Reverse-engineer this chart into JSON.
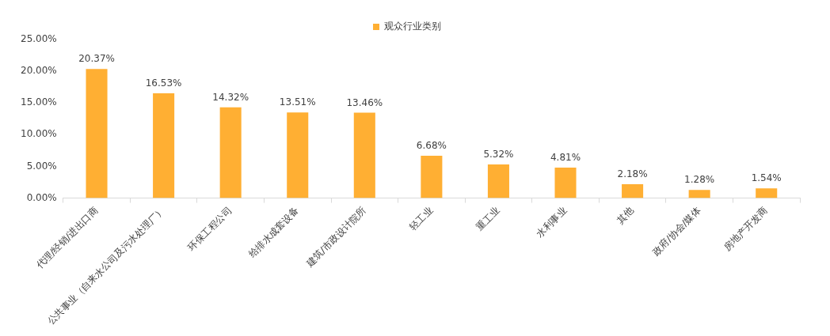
{
  "chart_data": {
    "type": "bar",
    "categories": [
      "代理/经销/进出口商",
      "公共事业（自来水公司及污水处理厂）",
      "环保工程公司",
      "给排水成套设备",
      "建筑/市政设计院所",
      "轻工业",
      "重工业",
      "水利事业",
      "其他",
      "政府/协会/媒体",
      "房地产开发商"
    ],
    "series": [
      {
        "name": "观众行业类别",
        "color": "#ffaf33",
        "values": [
          20.37,
          16.53,
          14.32,
          13.51,
          13.46,
          6.68,
          5.32,
          4.81,
          2.18,
          1.28,
          1.54
        ],
        "value_labels": [
          "20.37%",
          "16.53%",
          "14.32%",
          "13.51%",
          "13.46%",
          "6.68%",
          "5.32%",
          "4.81%",
          "2.18%",
          "1.28%",
          "1.54%"
        ]
      }
    ],
    "ylim": [
      0,
      25
    ],
    "yticks": [
      {
        "value": 0,
        "label": "0.00%"
      },
      {
        "value": 5,
        "label": "5.00%"
      },
      {
        "value": 10,
        "label": "10.00%"
      },
      {
        "value": 15,
        "label": "15.00%"
      },
      {
        "value": 20,
        "label": "20.00%"
      },
      {
        "value": 25,
        "label": "25.00%"
      }
    ],
    "grid": false,
    "legend": "top"
  }
}
